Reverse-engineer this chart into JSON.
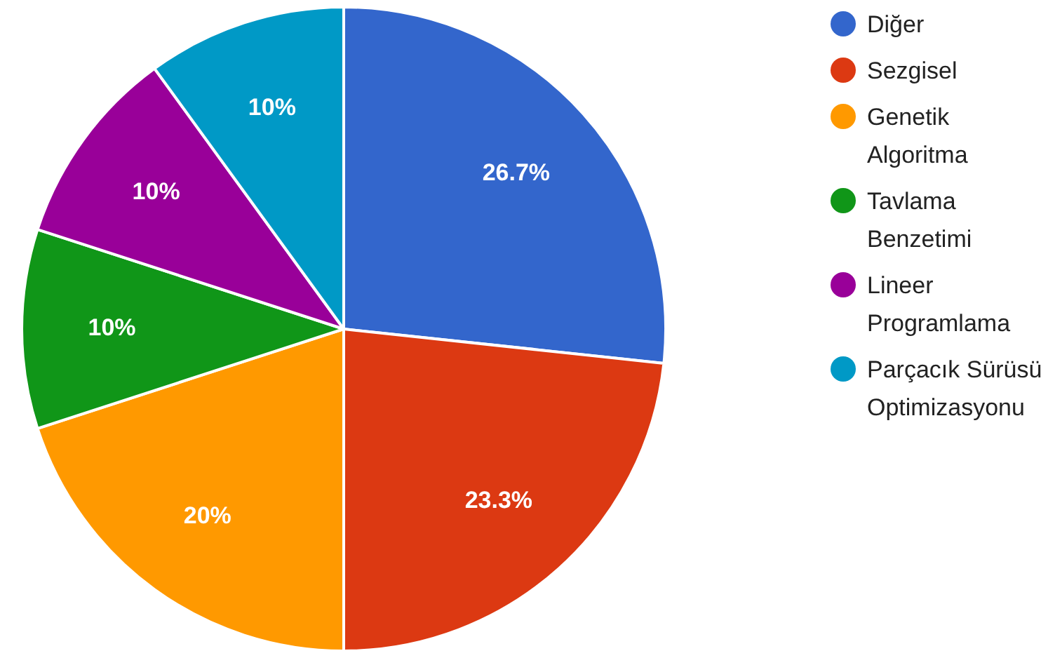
{
  "chart_data": {
    "type": "pie",
    "categories": [
      "Diğer",
      "Sezgisel",
      "Genetik Algoritma",
      "Tavlama Benzetimi",
      "Lineer Programlama",
      "Parçacık Sürüsü Optimizasyonu"
    ],
    "values": [
      26.7,
      23.3,
      20,
      10,
      10,
      10
    ],
    "colors": [
      "#3366cc",
      "#dc3912",
      "#ff9900",
      "#109618",
      "#990099",
      "#0099c6"
    ],
    "value_labels": [
      "26.7%",
      "23.3%",
      "20%",
      "10%",
      "10%",
      "10%"
    ],
    "legend": "right"
  }
}
